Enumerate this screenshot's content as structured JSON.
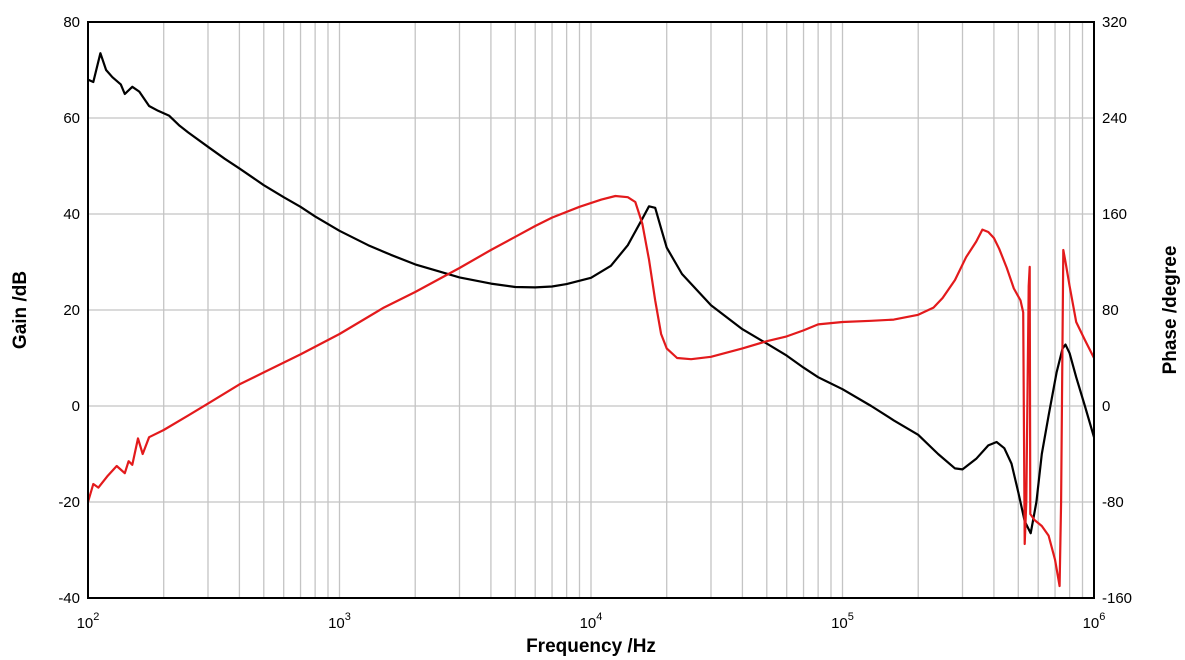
{
  "chart_data": {
    "type": "line",
    "title": "",
    "xlabel": "Frequency /Hz",
    "ylabel_left": "Gain /dB",
    "ylabel_right": "Phase /degree",
    "x_scale": "log",
    "xlim": [
      100,
      1000000
    ],
    "ylim_left": [
      -40,
      80
    ],
    "ylim_right": [
      -160,
      320
    ],
    "x_ticks": [
      {
        "base": "10",
        "exp": "2"
      },
      {
        "base": "10",
        "exp": "3"
      },
      {
        "base": "10",
        "exp": "4"
      },
      {
        "base": "10",
        "exp": "5"
      },
      {
        "base": "10",
        "exp": "6"
      }
    ],
    "y_ticks_left": [
      "80",
      "60",
      "40",
      "20",
      "0",
      "-20",
      "-40"
    ],
    "y_ticks_right": [
      "320",
      "240",
      "160",
      "80",
      "0",
      "-80",
      "-160"
    ],
    "grid": true,
    "series": [
      {
        "axis": "left",
        "color": "#000000",
        "points": [
          [
            100,
            68
          ],
          [
            105,
            67.5
          ],
          [
            112,
            73.5
          ],
          [
            118,
            70
          ],
          [
            125,
            68.5
          ],
          [
            135,
            67
          ],
          [
            140,
            65
          ],
          [
            150,
            66.5
          ],
          [
            160,
            65.5
          ],
          [
            175,
            62.5
          ],
          [
            190,
            61.5
          ],
          [
            210,
            60.5
          ],
          [
            230,
            58.5
          ],
          [
            250,
            57
          ],
          [
            300,
            54
          ],
          [
            350,
            51.5
          ],
          [
            400,
            49.5
          ],
          [
            500,
            46
          ],
          [
            600,
            43.5
          ],
          [
            700,
            41.5
          ],
          [
            800,
            39.5
          ],
          [
            1000,
            36.5
          ],
          [
            1300,
            33.5
          ],
          [
            1600,
            31.5
          ],
          [
            2000,
            29.5
          ],
          [
            2500,
            28
          ],
          [
            3000,
            26.8
          ],
          [
            4000,
            25.5
          ],
          [
            5000,
            24.8
          ],
          [
            6000,
            24.7
          ],
          [
            7000,
            24.9
          ],
          [
            8000,
            25.4
          ],
          [
            10000,
            26.7
          ],
          [
            12000,
            29.2
          ],
          [
            14000,
            33.5
          ],
          [
            16000,
            39
          ],
          [
            17000,
            41.6
          ],
          [
            18000,
            41.3
          ],
          [
            19000,
            37
          ],
          [
            20000,
            33
          ],
          [
            23000,
            27.5
          ],
          [
            30000,
            21
          ],
          [
            40000,
            16
          ],
          [
            50000,
            13
          ],
          [
            60000,
            10.5
          ],
          [
            70000,
            8
          ],
          [
            80000,
            6
          ],
          [
            100000,
            3.5
          ],
          [
            130000,
            0
          ],
          [
            160000,
            -3
          ],
          [
            200000,
            -6
          ],
          [
            240000,
            -10
          ],
          [
            280000,
            -13
          ],
          [
            300000,
            -13.2
          ],
          [
            340000,
            -11
          ],
          [
            380000,
            -8.2
          ],
          [
            410000,
            -7.5
          ],
          [
            440000,
            -8.8
          ],
          [
            470000,
            -12
          ],
          [
            500000,
            -18
          ],
          [
            530000,
            -24
          ],
          [
            560000,
            -26.5
          ],
          [
            590000,
            -20
          ],
          [
            620000,
            -10
          ],
          [
            660000,
            -2
          ],
          [
            710000,
            7
          ],
          [
            750000,
            12
          ],
          [
            770000,
            12.8
          ],
          [
            800000,
            11
          ],
          [
            850000,
            6
          ],
          [
            920000,
            0
          ],
          [
            1000000,
            -6.5
          ]
        ]
      },
      {
        "axis": "right",
        "color": "#e31a1c",
        "points": [
          [
            100,
            -80
          ],
          [
            105,
            -65
          ],
          [
            110,
            -68
          ],
          [
            120,
            -58
          ],
          [
            130,
            -50
          ],
          [
            140,
            -56
          ],
          [
            145,
            -46
          ],
          [
            150,
            -49
          ],
          [
            158,
            -27
          ],
          [
            165,
            -40
          ],
          [
            175,
            -26
          ],
          [
            200,
            -20
          ],
          [
            250,
            -8
          ],
          [
            300,
            2
          ],
          [
            400,
            18
          ],
          [
            500,
            28
          ],
          [
            700,
            43
          ],
          [
            1000,
            60
          ],
          [
            1500,
            82
          ],
          [
            2000,
            95
          ],
          [
            3000,
            115
          ],
          [
            4000,
            130
          ],
          [
            5000,
            141
          ],
          [
            6000,
            150
          ],
          [
            7000,
            157
          ],
          [
            9000,
            166
          ],
          [
            11000,
            172
          ],
          [
            12500,
            175
          ],
          [
            14000,
            174
          ],
          [
            15000,
            170
          ],
          [
            16000,
            152
          ],
          [
            17000,
            122
          ],
          [
            18000,
            88
          ],
          [
            19000,
            60
          ],
          [
            20000,
            48
          ],
          [
            22000,
            40
          ],
          [
            25000,
            39
          ],
          [
            30000,
            41
          ],
          [
            40000,
            48
          ],
          [
            50000,
            54
          ],
          [
            60000,
            58
          ],
          [
            70000,
            63
          ],
          [
            80000,
            68
          ],
          [
            100000,
            70
          ],
          [
            130000,
            71
          ],
          [
            160000,
            72
          ],
          [
            200000,
            76
          ],
          [
            230000,
            82
          ],
          [
            250000,
            90
          ],
          [
            280000,
            105
          ],
          [
            310000,
            124
          ],
          [
            340000,
            137
          ],
          [
            360000,
            147
          ],
          [
            380000,
            145
          ],
          [
            400000,
            140
          ],
          [
            420000,
            131
          ],
          [
            450000,
            115
          ],
          [
            480000,
            98
          ],
          [
            510000,
            88
          ],
          [
            523000,
            78
          ],
          [
            530000,
            -115
          ],
          [
            538000,
            -80
          ],
          [
            550000,
            100
          ],
          [
            555000,
            116
          ],
          [
            558000,
            -90
          ],
          [
            580000,
            -95
          ],
          [
            620000,
            -100
          ],
          [
            660000,
            -108
          ],
          [
            700000,
            -128
          ],
          [
            730000,
            -150
          ],
          [
            740000,
            -80
          ],
          [
            755000,
            130
          ],
          [
            770000,
            120
          ],
          [
            800000,
            100
          ],
          [
            850000,
            70
          ],
          [
            920000,
            55
          ],
          [
            1000000,
            40
          ]
        ]
      }
    ]
  }
}
